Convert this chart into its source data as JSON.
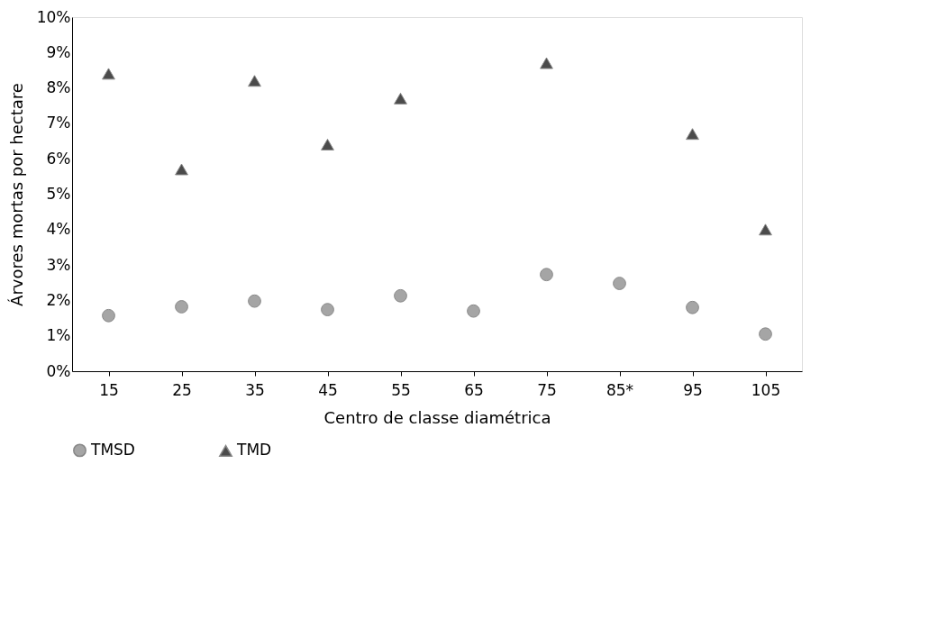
{
  "chart_data": {
    "type": "scatter",
    "xlabel": "Centro de classe diamétrica",
    "ylabel": "Árvores mortas por hectare",
    "categories": [
      "15",
      "25",
      "35",
      "45",
      "55",
      "65",
      "75",
      "85*",
      "95",
      "105"
    ],
    "series": [
      {
        "name": "TMSD",
        "color": "#808080",
        "marker": "circle",
        "values": [
          1.57,
          1.82,
          1.98,
          1.74,
          2.13,
          1.7,
          2.73,
          2.48,
          1.8,
          1.05
        ]
      },
      {
        "name": "TMD",
        "color": "#000000",
        "marker": "triangle",
        "values": [
          8.4,
          5.7,
          8.2,
          6.4,
          7.7,
          null,
          8.7,
          null,
          6.7,
          4.0
        ]
      }
    ],
    "ylim": [
      0,
      10
    ],
    "yticks": [
      {
        "value": 0,
        "label": "0%"
      },
      {
        "value": 1,
        "label": "1%"
      },
      {
        "value": 2,
        "label": "2%"
      },
      {
        "value": 3,
        "label": "3%"
      },
      {
        "value": 4,
        "label": "4%"
      },
      {
        "value": 5,
        "label": "5%"
      },
      {
        "value": 6,
        "label": "6%"
      },
      {
        "value": 7,
        "label": "7%"
      },
      {
        "value": 8,
        "label": "8%"
      },
      {
        "value": 9,
        "label": "9%"
      },
      {
        "value": 10,
        "label": "10%"
      }
    ],
    "grid": false,
    "legend": "bottom"
  }
}
